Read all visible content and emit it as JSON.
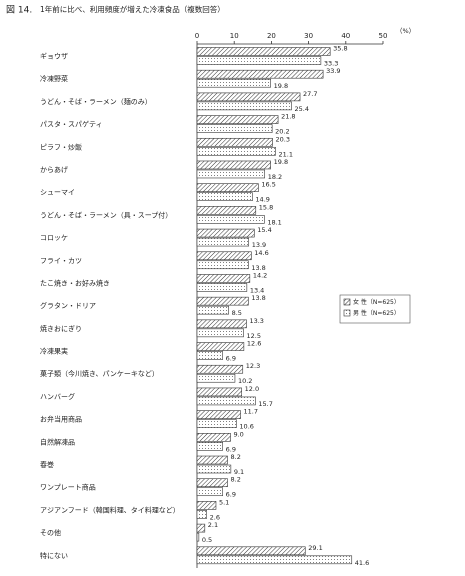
{
  "chart_data": {
    "type": "bar",
    "orientation": "horizontal",
    "figure_label": "図 14.",
    "title": "1年前に比べ、利用頻度が増えた冷凍食品（複数回答）",
    "unit": "（%）",
    "categories": [
      "ギョウザ",
      "冷凍野菜",
      "うどん・そば・ラーメン（麺のみ）",
      "パスタ・スパゲティ",
      "ピラフ・炒飯",
      "からあげ",
      "シューマイ",
      "うどん・そば・ラーメン（具・スープ付）",
      "コロッケ",
      "フライ・カツ",
      "たこ焼き・お好み焼き",
      "グラタン・ドリア",
      "焼きおにぎり",
      "冷凍果実",
      "菓子類（今川焼き、パンケーキなど）",
      "ハンバーグ",
      "お弁当用商品",
      "自然解凍品",
      "春巻",
      "ワンプレート商品",
      "アジアンフード（韓国料理、タイ料理など）",
      "その他",
      "特にない"
    ],
    "series": [
      {
        "name": "女 性（N=625）",
        "color": "#333333",
        "pattern": "hatch",
        "values": [
          35.8,
          33.9,
          27.7,
          21.8,
          20.3,
          19.8,
          16.5,
          15.8,
          15.4,
          14.6,
          14.2,
          13.8,
          13.3,
          12.6,
          12.3,
          12.0,
          11.7,
          9.0,
          8.2,
          8.2,
          5.1,
          2.1,
          29.1
        ],
        "value_labels": [
          "35.8",
          "33.9",
          "27.7",
          "21.8",
          "20.3",
          "19.8",
          "16.5",
          "15.8",
          "15.4",
          "14.6",
          "14.2",
          "13.8",
          "13.3",
          "12.6",
          "12.3",
          "12.0",
          "11.7",
          "9.0",
          "8.2",
          "8.2",
          "5.1",
          "2.1",
          "29.1"
        ]
      },
      {
        "name": "男 性（N=625）",
        "color": "#333333",
        "pattern": "dots",
        "values": [
          33.3,
          19.8,
          25.4,
          20.2,
          21.1,
          18.2,
          14.9,
          18.1,
          13.9,
          13.8,
          13.4,
          8.5,
          12.5,
          6.9,
          10.2,
          15.7,
          10.6,
          6.9,
          9.1,
          6.9,
          2.6,
          0.5,
          41.6
        ],
        "value_labels": [
          "33.3",
          "19.8",
          "25.4",
          "20.2",
          "21.1",
          "18.2",
          "14.9",
          "18.1",
          "13.9",
          "13.8",
          "13.4",
          "8.5",
          "12.5",
          "6.9",
          "10.2",
          "15.7",
          "10.6",
          "6.9",
          "9.1",
          "6.9",
          "2.6",
          "0.5",
          "41.6"
        ]
      }
    ],
    "xlim": [
      0,
      50
    ],
    "xticks": [
      0,
      10,
      20,
      30,
      40,
      50
    ],
    "legend": "right"
  }
}
